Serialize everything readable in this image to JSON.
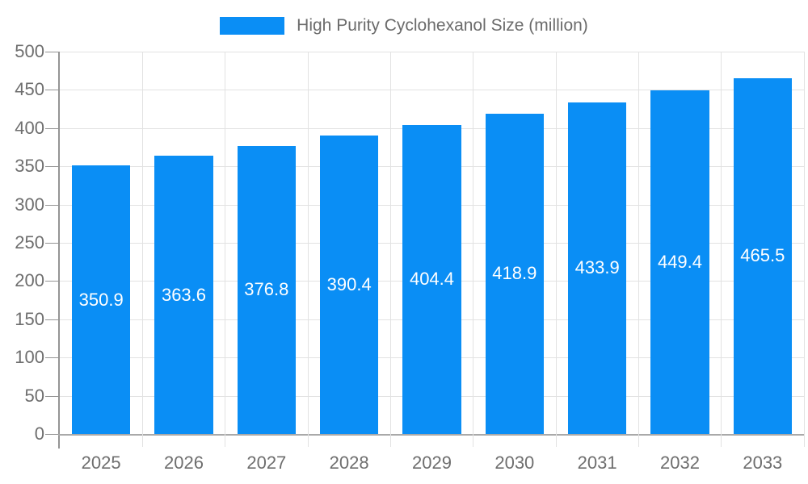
{
  "chart_data": {
    "type": "bar",
    "title": "",
    "legend": {
      "label": "High Purity Cyclohexanol Size (million)",
      "position": "top-center"
    },
    "categories": [
      "2025",
      "2026",
      "2027",
      "2028",
      "2029",
      "2030",
      "2031",
      "2032",
      "2033"
    ],
    "series": [
      {
        "name": "High Purity Cyclohexanol Size (million)",
        "values": [
          350.9,
          363.6,
          376.8,
          390.4,
          404.4,
          418.9,
          433.9,
          449.4,
          465.5
        ]
      }
    ],
    "value_labels": [
      "350.9",
      "363.6",
      "376.8",
      "390.4",
      "404.4",
      "418.9",
      "433.9",
      "449.4",
      "465.5"
    ],
    "xlabel": "",
    "ylabel": "",
    "ylim": [
      0,
      500
    ],
    "yticks": [
      0,
      50,
      100,
      150,
      200,
      250,
      300,
      350,
      400,
      450,
      500
    ],
    "grid": true,
    "colors": {
      "bar": "#0a8ef5",
      "value_label": "#ffffff",
      "axis": "#949494",
      "x_axis": "#a9a9a9",
      "grid_line": "#e2e2e2",
      "tick_label": "#6e6e6e",
      "legend_text": "#6b6b6b"
    }
  }
}
